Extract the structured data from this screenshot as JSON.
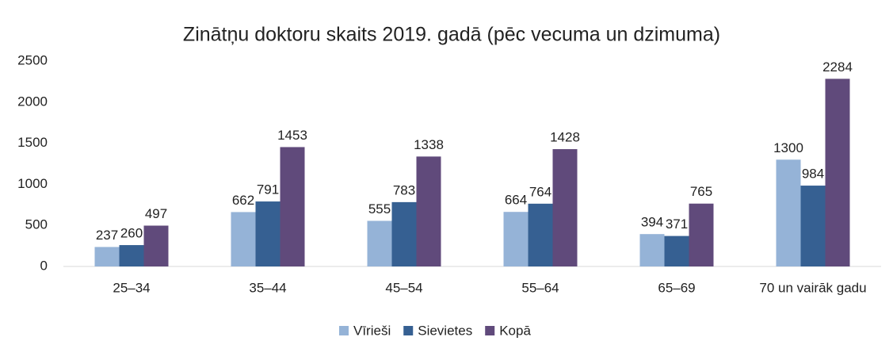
{
  "chart_data": {
    "type": "bar",
    "title": "Zinātņu doktoru skaits 2019. gadā (pēc vecuma un dzimuma)",
    "categories": [
      "25–34",
      "35–44",
      "45–54",
      "55–64",
      "65–69",
      "70 un vairāk gadu"
    ],
    "series": [
      {
        "name": "Vīrieši",
        "color": "#95b3d7",
        "values": [
          237,
          662,
          555,
          664,
          394,
          1300
        ]
      },
      {
        "name": "Sievietes",
        "color": "#366092",
        "values": [
          260,
          791,
          783,
          764,
          371,
          984
        ]
      },
      {
        "name": "Kopā",
        "color": "#604a7b",
        "values": [
          497,
          1453,
          1338,
          1428,
          765,
          2284
        ]
      }
    ],
    "ylim": [
      0,
      2500
    ],
    "yticks": [
      0,
      500,
      1000,
      1500,
      2000,
      2500
    ],
    "grid": false,
    "legend": "bottom"
  }
}
